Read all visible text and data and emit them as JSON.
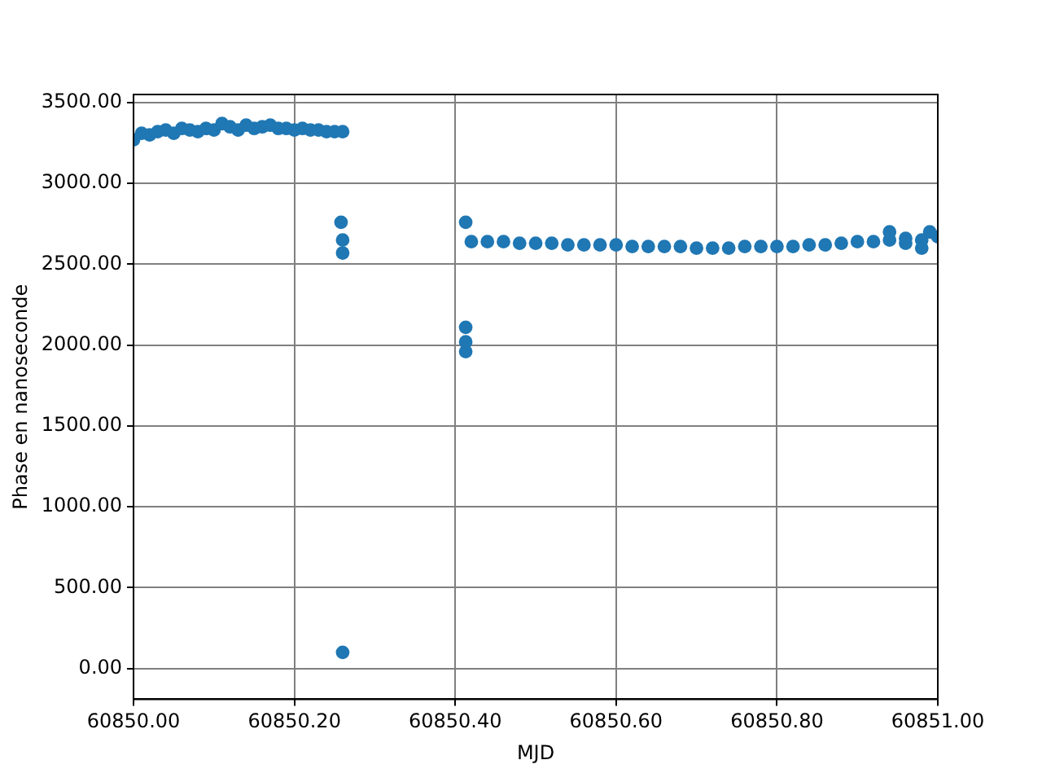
{
  "chart_data": {
    "type": "scatter",
    "xlabel": "MJD",
    "ylabel": "Phase en nanoseconde",
    "x": [
      60850.0,
      60850.01,
      60850.02,
      60850.03,
      60850.04,
      60850.05,
      60850.06,
      60850.07,
      60850.08,
      60850.09,
      60850.1,
      60850.11,
      60850.12,
      60850.13,
      60850.14,
      60850.15,
      60850.16,
      60850.17,
      60850.18,
      60850.19,
      60850.2,
      60850.21,
      60850.22,
      60850.23,
      60850.24,
      60850.25,
      60850.26,
      60850.258,
      60850.26,
      60850.26,
      60850.26,
      60850.413,
      60850.413,
      60850.413,
      60850.413,
      60850.42,
      60850.44,
      60850.46,
      60850.48,
      60850.5,
      60850.52,
      60850.54,
      60850.56,
      60850.58,
      60850.6,
      60850.62,
      60850.64,
      60850.66,
      60850.68,
      60850.7,
      60850.72,
      60850.74,
      60850.76,
      60850.78,
      60850.8,
      60850.82,
      60850.84,
      60850.86,
      60850.88,
      60850.9,
      60850.92,
      60850.94,
      60850.96,
      60850.98,
      60851.0,
      60850.94,
      60850.98,
      60850.99,
      60850.96
    ],
    "values": [
      3270,
      3310,
      3300,
      3320,
      3330,
      3310,
      3340,
      3330,
      3320,
      3340,
      3330,
      3370,
      3350,
      3330,
      3360,
      3340,
      3350,
      3360,
      3340,
      3340,
      3330,
      3340,
      3330,
      3330,
      3320,
      3320,
      3320,
      2760,
      2650,
      2570,
      100,
      2760,
      2110,
      2020,
      1960,
      2640,
      2640,
      2640,
      2630,
      2630,
      2630,
      2620,
      2620,
      2620,
      2620,
      2610,
      2610,
      2610,
      2610,
      2600,
      2600,
      2600,
      2610,
      2610,
      2610,
      2610,
      2620,
      2620,
      2630,
      2640,
      2640,
      2650,
      2660,
      2650,
      2670,
      2700,
      2600,
      2700,
      2630
    ],
    "color": "#1f77b4",
    "marker": "circle",
    "grid": true,
    "xlim": [
      60850,
      60851
    ],
    "ylim": [
      -190,
      3550
    ],
    "xticks": [
      {
        "value": 60850,
        "label": "60850.00"
      },
      {
        "value": 60850.2,
        "label": "60850.20"
      },
      {
        "value": 60850.4,
        "label": "60850.40"
      },
      {
        "value": 60850.6,
        "label": "60850.60"
      },
      {
        "value": 60850.8,
        "label": "60850.80"
      },
      {
        "value": 60851,
        "label": "60851.00"
      }
    ],
    "yticks": [
      {
        "value": 0,
        "label": "0.00"
      },
      {
        "value": 500,
        "label": "500.00"
      },
      {
        "value": 1000,
        "label": "1000.00"
      },
      {
        "value": 1500,
        "label": "1500.00"
      },
      {
        "value": 2000,
        "label": "2000.00"
      },
      {
        "value": 2500,
        "label": "2500.00"
      },
      {
        "value": 3000,
        "label": "3000.00"
      },
      {
        "value": 3500,
        "label": "3500.00"
      }
    ]
  }
}
